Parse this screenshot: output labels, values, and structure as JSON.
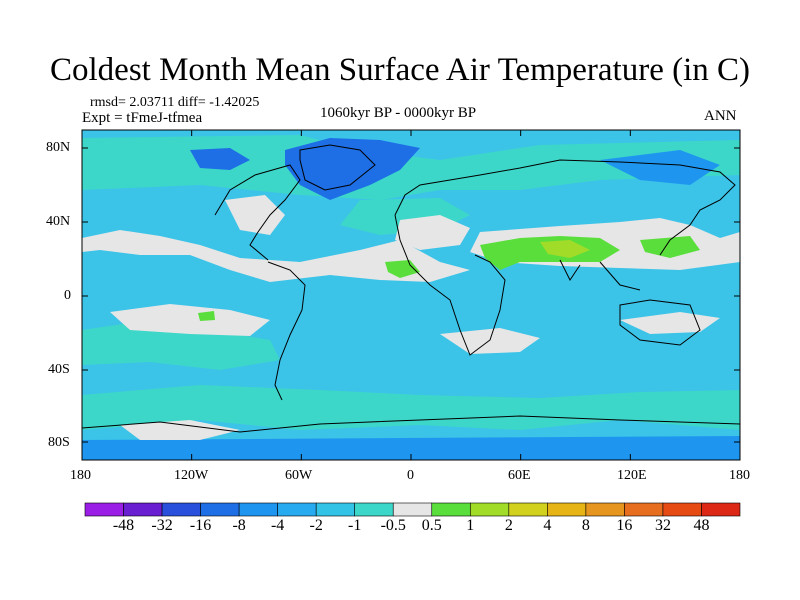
{
  "title": "Coldest Month Mean Surface Air Temperature (in C)",
  "stats": "rmsd= 2.03711 diff= -1.42025",
  "experiment": "Expt = tFmeJ-tfmea",
  "period": "1060kyr BP - 0000kyr BP",
  "season": "ANN",
  "lat_ticks": [
    "80N",
    "40N",
    "0",
    "40S",
    "80S"
  ],
  "lon_ticks": [
    "180",
    "120W",
    "60W",
    "0",
    "60E",
    "120E",
    "180"
  ],
  "colorbar": {
    "labels": [
      "-48",
      "-32",
      "-16",
      "-8",
      "-4",
      "-2",
      "-1",
      "-0.5",
      "0.5",
      "1",
      "2",
      "4",
      "8",
      "16",
      "32",
      "48"
    ],
    "colors": [
      "#9a1ee6",
      "#6a1ed2",
      "#2850dc",
      "#1e6ee6",
      "#1e96f0",
      "#28aaf0",
      "#32c3e6",
      "#3cd7c8",
      "#e6e6e6",
      "#5ade3c",
      "#a0dc28",
      "#d2d21e",
      "#e6b414",
      "#e6961e",
      "#e66e1e",
      "#e64b14",
      "#dc2814"
    ]
  },
  "map_colors": {
    "ocean": "#3cc3e8",
    "teal": "#3cd7c8",
    "light_blue": "#1e96f0",
    "blue": "#1e6ee6",
    "gray": "#e6e6e6",
    "green": "#5ade3c",
    "yellow_green": "#a0dc28",
    "coast": "#000000"
  }
}
